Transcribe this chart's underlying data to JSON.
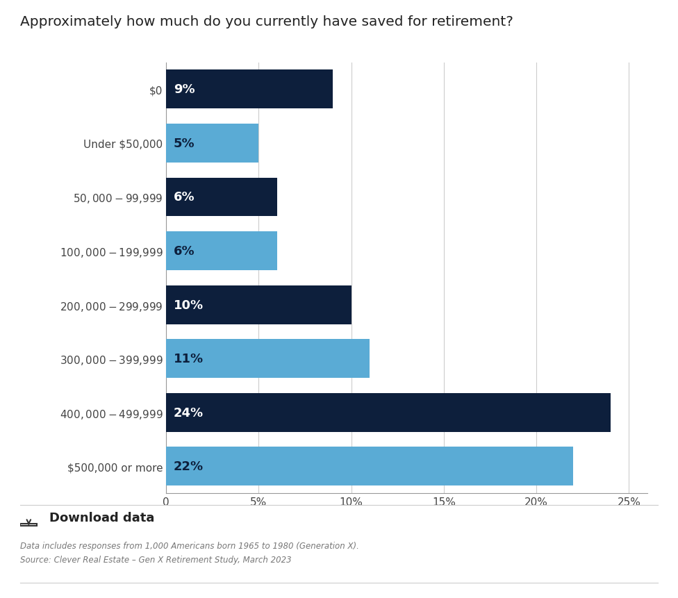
{
  "title": "Approximately how much do you currently have saved for retirement?",
  "categories": [
    "$0",
    "Under $50,000",
    "$50,000 - $99,999",
    "$100,000 - $199,999",
    "$200,000 - $299,999",
    "$300,000 - $399,999",
    "$400,000 - $499,999",
    "$500,000 or more"
  ],
  "values": [
    22,
    24,
    11,
    10,
    6,
    6,
    5,
    9
  ],
  "colors": [
    "#5aabd5",
    "#0d1f3c",
    "#5aabd5",
    "#0d1f3c",
    "#5aabd5",
    "#0d1f3c",
    "#5aabd5",
    "#0d1f3c"
  ],
  "label_colors": [
    "#0d1f3c",
    "#ffffff",
    "#0d1f3c",
    "#ffffff",
    "#0d1f3c",
    "#ffffff",
    "#0d1f3c",
    "#ffffff"
  ],
  "xlim": [
    0,
    26
  ],
  "xticks": [
    0,
    5,
    10,
    15,
    20,
    25
  ],
  "xtick_labels": [
    "0",
    "5%",
    "10%",
    "15%",
    "20%",
    "25%"
  ],
  "background_color": "#ffffff",
  "title_fontsize": 14.5,
  "bar_height": 0.72,
  "label_fontsize": 13,
  "ytick_fontsize": 11,
  "xtick_fontsize": 11,
  "footnote1": "Data includes responses from 1,000 Americans born 1965 to 1980 (Generation X).",
  "footnote2": "Source: Clever Real Estate – Gen X Retirement Study, March 2023",
  "download_text": "Download data"
}
